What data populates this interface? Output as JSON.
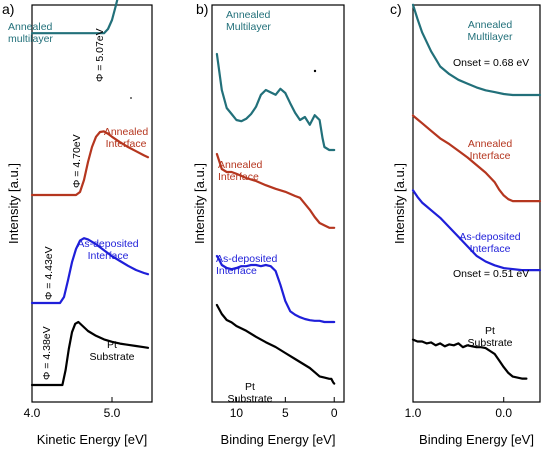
{
  "chart_data": [
    {
      "panel": "a)",
      "type": "line",
      "xlabel": "Kinetic Energy [eV]",
      "ylabel": "Intensity [a.u.]",
      "xlim": [
        4.0,
        5.5
      ],
      "xticks": [
        "4.0",
        "5.0"
      ],
      "series": [
        {
          "name": "Annealed multilayer",
          "color": "#22707a",
          "labels": [
            "Annealed",
            "multilayer"
          ],
          "phi": "Φ = 5.07eV",
          "x": [
            4.0,
            4.9,
            4.95,
            5.0,
            5.05,
            5.1,
            5.15,
            5.2,
            5.25,
            5.3,
            5.35,
            5.4,
            5.45
          ],
          "y": [
            0.98,
            0.98,
            1.05,
            1.2,
            1.45,
            1.72,
            1.97,
            2.13,
            2.21,
            2.23,
            2.17,
            2.05,
            1.97
          ]
        },
        {
          "name": "Annealed Interface",
          "color": "#b5361f",
          "labels": [
            "Annealed",
            "Interface"
          ],
          "phi": "Φ = 4.70eV",
          "x": [
            4.0,
            4.55,
            4.6,
            4.65,
            4.7,
            4.75,
            4.8,
            4.85,
            4.9,
            4.95,
            5.0,
            5.1,
            5.2,
            5.3,
            5.4,
            5.45
          ],
          "y": [
            0.0,
            0.0,
            0.05,
            0.25,
            0.55,
            0.8,
            0.97,
            1.05,
            1.06,
            1.02,
            0.97,
            0.88,
            0.8,
            0.73,
            0.66,
            0.63
          ]
        },
        {
          "name": "As-deposited Interface",
          "color": "#1f1fd9",
          "labels": [
            "As-deposited",
            "Interface"
          ],
          "phi": "Φ = 4.43eV",
          "x": [
            4.0,
            4.35,
            4.4,
            4.45,
            4.5,
            4.55,
            4.6,
            4.65,
            4.7,
            4.8,
            4.9,
            5.0,
            5.1,
            5.2,
            5.3,
            5.4,
            5.45
          ],
          "y": [
            0.0,
            0.0,
            0.1,
            0.38,
            0.68,
            0.9,
            1.04,
            1.08,
            1.06,
            0.98,
            0.88,
            0.78,
            0.7,
            0.62,
            0.55,
            0.5,
            0.48
          ]
        },
        {
          "name": "Pt Substrate",
          "color": "#000000",
          "labels": [
            "Pt",
            "Substrate"
          ],
          "phi": "Φ = 4.38eV",
          "x": [
            4.0,
            4.38,
            4.42,
            4.46,
            4.5,
            4.54,
            4.58,
            4.62,
            4.7,
            4.8,
            4.9,
            5.0,
            5.1,
            5.2,
            5.3,
            5.4,
            5.45
          ],
          "y": [
            0.0,
            0.0,
            0.25,
            0.6,
            0.88,
            1.02,
            1.05,
            1.0,
            0.9,
            0.82,
            0.76,
            0.72,
            0.69,
            0.67,
            0.65,
            0.63,
            0.62
          ]
        }
      ]
    },
    {
      "panel": "b)",
      "type": "line",
      "xlabel": "Binding Energy [eV]",
      "ylabel": "Intensity [a.u.]",
      "xlim": [
        12.5,
        -1.0
      ],
      "xticks": [
        "10",
        "5",
        "0"
      ],
      "series": [
        {
          "name": "Annealed Multilayer",
          "color": "#22707a",
          "labels": [
            "Annealed",
            "Multilayer"
          ],
          "x": [
            12.0,
            11.5,
            11.0,
            10.5,
            10.0,
            9.5,
            9.0,
            8.5,
            8.0,
            7.5,
            7.0,
            6.5,
            6.0,
            5.5,
            5.0,
            4.5,
            4.0,
            3.5,
            3.0,
            2.5,
            2.0,
            1.5,
            1.2,
            1.0,
            0.5,
            0.0
          ],
          "y": [
            2.6,
            2.0,
            1.7,
            1.6,
            1.5,
            1.48,
            1.52,
            1.6,
            1.72,
            1.92,
            2.0,
            1.96,
            1.92,
            2.02,
            1.95,
            1.78,
            1.62,
            1.5,
            1.55,
            1.42,
            1.58,
            1.5,
            1.2,
            1.05,
            1.0,
            1.0
          ]
        },
        {
          "name": "Annealed Interface",
          "color": "#b5361f",
          "labels": [
            "Annealed",
            "Interface"
          ],
          "x": [
            12.0,
            11.5,
            11.0,
            10.5,
            10.0,
            9.0,
            8.0,
            7.0,
            6.0,
            5.0,
            4.0,
            3.5,
            3.0,
            2.5,
            2.0,
            1.5,
            1.0,
            0.5,
            0.0
          ],
          "y": [
            1.85,
            1.6,
            1.55,
            1.55,
            1.52,
            1.45,
            1.4,
            1.33,
            1.27,
            1.22,
            1.15,
            1.12,
            1.02,
            0.92,
            0.8,
            0.7,
            0.66,
            0.62,
            0.62
          ]
        },
        {
          "name": "As-deposited Interface",
          "color": "#1f1fd9",
          "labels": [
            "As-deposited",
            "Interface"
          ],
          "x": [
            12.0,
            11.8,
            11.5,
            11.0,
            10.5,
            10.0,
            9.5,
            9.0,
            8.5,
            8.0,
            7.5,
            7.0,
            6.5,
            6.0,
            5.5,
            5.0,
            4.5,
            4.0,
            3.5,
            3.0,
            2.5,
            2.0,
            1.5,
            1.0,
            0.5,
            0.0
          ],
          "y": [
            1.1,
            1.05,
            0.95,
            0.9,
            0.88,
            0.9,
            0.93,
            0.93,
            0.95,
            0.95,
            0.93,
            0.95,
            0.93,
            0.85,
            0.62,
            0.35,
            0.18,
            0.12,
            0.08,
            0.05,
            0.03,
            0.02,
            0.02,
            0.0,
            0.0,
            0.0
          ]
        },
        {
          "name": "Pt Substrate",
          "color": "#000000",
          "labels": [
            "Pt",
            "Substrate"
          ],
          "x": [
            12.0,
            11.5,
            11.0,
            10.5,
            10.0,
            9.0,
            8.0,
            7.0,
            6.0,
            5.0,
            4.0,
            3.5,
            3.0,
            2.5,
            2.0,
            1.5,
            1.0,
            0.5,
            0.3,
            0.1,
            0.0
          ],
          "y": [
            1.25,
            1.1,
            1.0,
            0.96,
            0.9,
            0.82,
            0.72,
            0.63,
            0.55,
            0.45,
            0.35,
            0.3,
            0.25,
            0.2,
            0.13,
            0.06,
            0.04,
            0.02,
            0.02,
            -0.04,
            -0.06
          ]
        }
      ]
    },
    {
      "panel": "c)",
      "type": "line",
      "xlabel": "Binding Energy [eV]",
      "ylabel": "Intensity [a.u.]",
      "xlim": [
        1.0,
        -0.4
      ],
      "xticks": [
        "1.0",
        "0.0"
      ],
      "series": [
        {
          "name": "Annealed Multilayer",
          "color": "#22707a",
          "labels": [
            "Annealed",
            "Multilayer"
          ],
          "onset": "Onset = 0.68 eV",
          "x": [
            1.0,
            0.95,
            0.9,
            0.85,
            0.8,
            0.75,
            0.7,
            0.6,
            0.5,
            0.4,
            0.3,
            0.2,
            0.1,
            0.0,
            -0.1,
            -0.2,
            -0.3,
            -0.4
          ],
          "y": [
            1.95,
            1.8,
            1.66,
            1.56,
            1.46,
            1.38,
            1.3,
            1.22,
            1.16,
            1.12,
            1.08,
            1.05,
            1.03,
            1.01,
            1.0,
            1.0,
            1.0,
            1.0
          ]
        },
        {
          "name": "Annealed Interface",
          "color": "#b5361f",
          "labels": [
            "Annealed",
            "Interface"
          ],
          "x": [
            1.0,
            0.95,
            0.9,
            0.8,
            0.7,
            0.6,
            0.5,
            0.4,
            0.3,
            0.2,
            0.1,
            0.05,
            0.0,
            -0.05,
            -0.1,
            -0.2,
            -0.3,
            -0.4
          ],
          "y": [
            1.52,
            1.48,
            1.44,
            1.36,
            1.28,
            1.22,
            1.15,
            1.08,
            1.0,
            0.92,
            0.82,
            0.74,
            0.68,
            0.64,
            0.62,
            0.62,
            0.62,
            0.62
          ]
        },
        {
          "name": "As-deposited Interface",
          "color": "#1f1fd9",
          "labels": [
            "As-deposited",
            "Interface"
          ],
          "onset": "Onset = 0.51 eV",
          "x": [
            1.0,
            0.95,
            0.9,
            0.85,
            0.8,
            0.7,
            0.6,
            0.5,
            0.4,
            0.3,
            0.2,
            0.1,
            0.0,
            -0.1,
            -0.2,
            -0.3,
            -0.4
          ],
          "y": [
            1.05,
            0.98,
            0.92,
            0.88,
            0.84,
            0.76,
            0.66,
            0.56,
            0.46,
            0.36,
            0.3,
            0.26,
            0.23,
            0.22,
            0.21,
            0.21,
            0.21
          ]
        },
        {
          "name": "Pt Substrate",
          "color": "#000000",
          "labels": [
            "Pt",
            "Substrate"
          ],
          "x": [
            1.0,
            0.95,
            0.9,
            0.85,
            0.8,
            0.75,
            0.7,
            0.65,
            0.6,
            0.55,
            0.5,
            0.45,
            0.4,
            0.35,
            0.3,
            0.25,
            0.2,
            0.15,
            0.1,
            0.05,
            0.0,
            -0.05,
            -0.1,
            -0.15,
            -0.2,
            -0.25
          ],
          "y": [
            0.32,
            0.3,
            0.3,
            0.28,
            0.29,
            0.26,
            0.28,
            0.25,
            0.27,
            0.26,
            0.28,
            0.24,
            0.26,
            0.25,
            0.24,
            0.24,
            0.23,
            0.2,
            0.17,
            0.1,
            0.03,
            -0.03,
            -0.07,
            -0.08,
            -0.09,
            -0.09
          ]
        }
      ]
    }
  ]
}
